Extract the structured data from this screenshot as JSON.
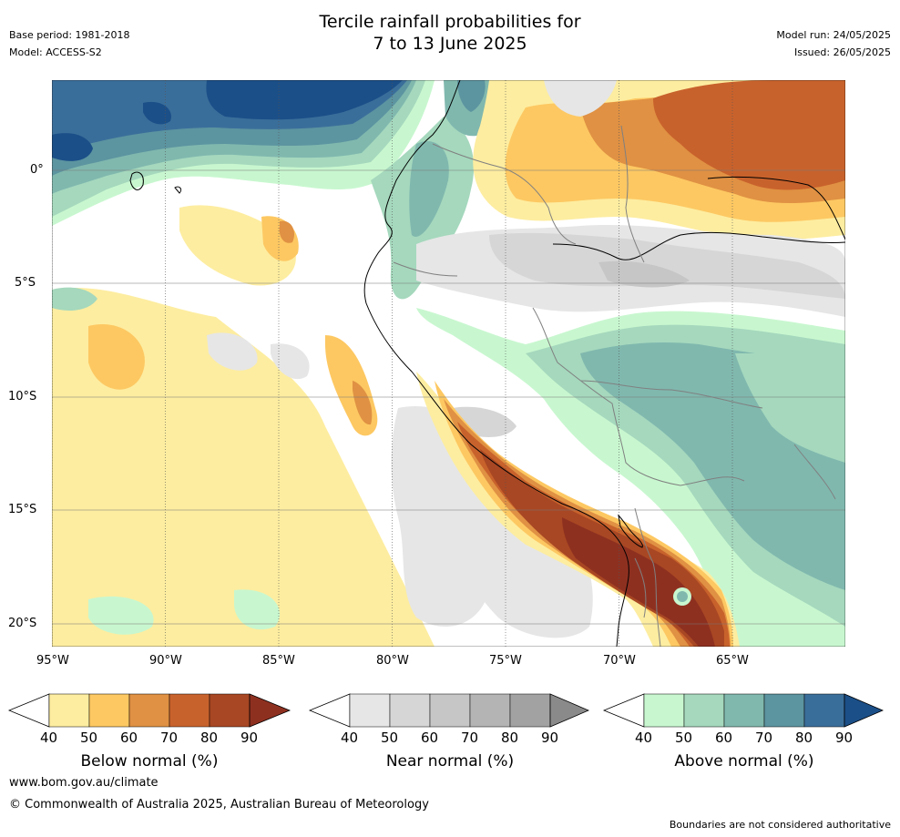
{
  "title": {
    "line1": "Tercile rainfall probabilities for",
    "line2": "7 to 13 June 2025"
  },
  "meta_left": {
    "base_period": "Base period: 1981-2018",
    "model": "Model: ACCESS-S2"
  },
  "meta_right": {
    "model_run": "Model run: 24/05/2025",
    "issued": "Issued: 26/05/2025"
  },
  "map": {
    "lon_labels": [
      "95°W",
      "90°W",
      "85°W",
      "80°W",
      "75°W",
      "70°W",
      "65°W"
    ],
    "lat_labels": [
      "0°",
      "5°S",
      "10°S",
      "15°S",
      "20°S"
    ]
  },
  "colorbars": [
    {
      "label": "Below normal (%)",
      "ticks": [
        "40",
        "50",
        "60",
        "70",
        "80",
        "90"
      ],
      "colors": [
        "#fdeda0",
        "#fdc862",
        "#e09143",
        "#c8622c",
        "#a84723",
        "#8e3020"
      ]
    },
    {
      "label": "Near normal (%)",
      "ticks": [
        "40",
        "50",
        "60",
        "70",
        "80",
        "90"
      ],
      "colors": [
        "#e6e6e6",
        "#d6d6d6",
        "#c6c6c6",
        "#b4b4b4",
        "#a2a2a2",
        "#8a8a8a"
      ]
    },
    {
      "label": "Above normal (%)",
      "ticks": [
        "40",
        "50",
        "60",
        "70",
        "80",
        "90"
      ],
      "colors": [
        "#c8f7cf",
        "#a5d8bd",
        "#80b8ae",
        "#5c94a0",
        "#3a6e9a",
        "#1b4f88"
      ]
    }
  ],
  "footer": {
    "website": "www.bom.gov.au/climate",
    "copyright": "© Commonwealth of Australia 2025, Australian Bureau of Meteorology",
    "disclaimer": "Boundaries are not considered authoritative"
  }
}
